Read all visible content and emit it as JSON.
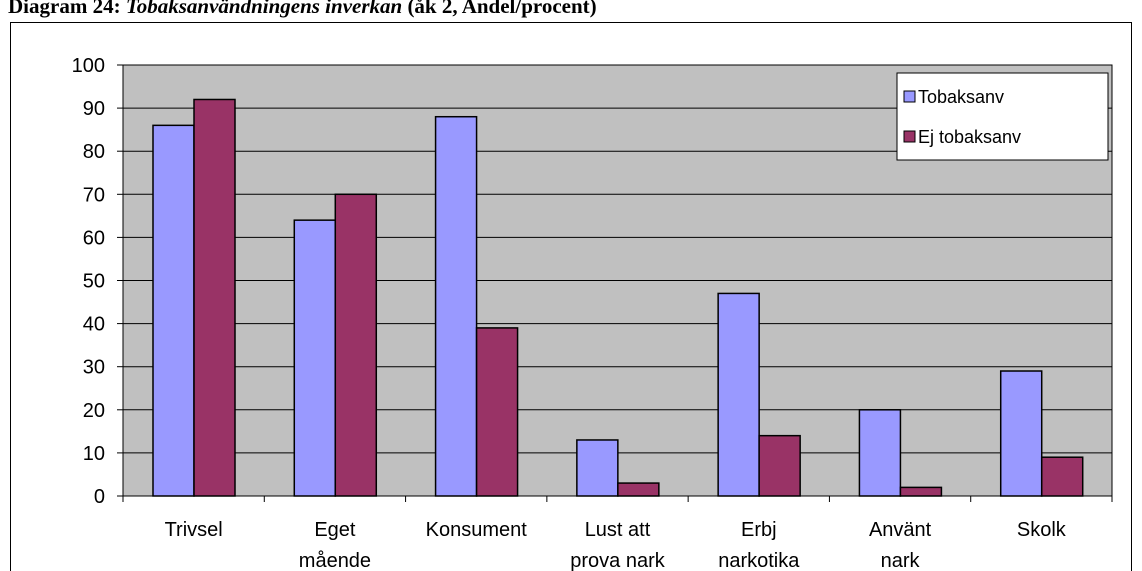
{
  "chart_data": {
    "type": "bar",
    "title": [
      "Diagram 24: ",
      "Tobaksanvändningens inverkan",
      " (åk 2, Andel/procent)"
    ],
    "categories": [
      [
        "Trivsel"
      ],
      [
        "Eget",
        "mående"
      ],
      [
        "Konsument"
      ],
      [
        "Lust att",
        "prova nark"
      ],
      [
        "Erbj",
        "narkotika"
      ],
      [
        "Använt",
        "nark"
      ],
      [
        "Skolk"
      ]
    ],
    "series": [
      {
        "name": "Tobaksanv",
        "color": "#9999ff",
        "values": [
          86,
          64,
          88,
          13,
          47,
          20,
          29
        ]
      },
      {
        "name": "Ej tobaksanv",
        "color": "#993366",
        "values": [
          92,
          70,
          39,
          3,
          14,
          2,
          9
        ]
      }
    ],
    "ylim": [
      0,
      100
    ],
    "yticks": [
      0,
      10,
      20,
      30,
      40,
      50,
      60,
      70,
      80,
      90,
      100
    ],
    "grid": true,
    "legend": "top-right",
    "plot_background": "#c0c0c0"
  }
}
